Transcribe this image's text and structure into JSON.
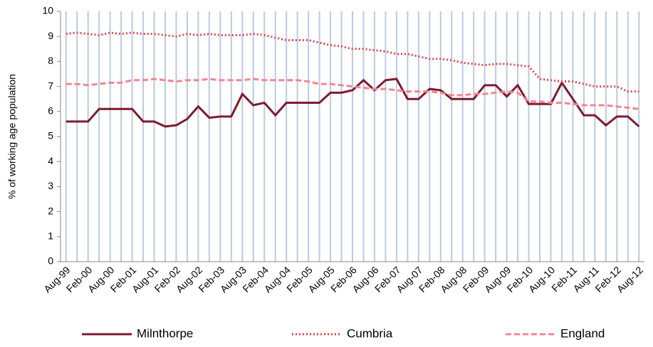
{
  "chart_data": {
    "type": "line",
    "ylabel": "% of working age population",
    "categories": [
      "Aug-99",
      null,
      "Feb-00",
      null,
      "Aug-00",
      null,
      "Feb-01",
      null,
      "Aug-01",
      null,
      "Feb-02",
      null,
      "Aug-02",
      null,
      "Feb-03",
      null,
      "Aug-03",
      null,
      "Feb-04",
      null,
      "Aug-04",
      null,
      "Feb-05",
      null,
      "Aug-05",
      null,
      "Feb-06",
      null,
      "Aug-06",
      null,
      "Feb-07",
      null,
      "Aug-07",
      null,
      "Feb-08",
      null,
      "Aug-08",
      null,
      "Feb-09",
      null,
      "Aug-09",
      null,
      "Feb-10",
      null,
      "Aug-10",
      null,
      "Feb-11",
      null,
      "Aug-11",
      null,
      "Feb-12",
      null,
      "Aug-12"
    ],
    "series": [
      {
        "name": "Milnthorpe",
        "color": "#7b1c2e",
        "style": "solid",
        "values": [
          5.6,
          5.6,
          5.6,
          6.1,
          6.1,
          6.1,
          6.1,
          5.6,
          5.6,
          5.4,
          5.45,
          5.7,
          6.2,
          5.75,
          5.8,
          5.8,
          6.7,
          6.25,
          6.35,
          5.85,
          6.35,
          6.35,
          6.35,
          6.35,
          6.75,
          6.75,
          6.85,
          7.25,
          6.85,
          7.25,
          7.3,
          6.5,
          6.5,
          6.9,
          6.85,
          6.5,
          6.5,
          6.5,
          7.05,
          7.05,
          6.6,
          7.05,
          6.3,
          6.3,
          6.3,
          7.15,
          6.5,
          5.85,
          5.85,
          5.45,
          5.8,
          5.8,
          5.4
        ]
      },
      {
        "name": "Cumbria",
        "color": "#e8474c",
        "style": "dotted",
        "values": [
          9.1,
          9.15,
          9.1,
          9.05,
          9.15,
          9.1,
          9.15,
          9.1,
          9.1,
          9.05,
          9.0,
          9.1,
          9.05,
          9.1,
          9.05,
          9.05,
          9.05,
          9.1,
          9.05,
          8.95,
          8.85,
          8.85,
          8.85,
          8.75,
          8.65,
          8.6,
          8.5,
          8.5,
          8.45,
          8.4,
          8.3,
          8.3,
          8.2,
          8.1,
          8.1,
          8.05,
          7.95,
          7.9,
          7.85,
          7.9,
          7.9,
          7.85,
          7.8,
          7.3,
          7.25,
          7.2,
          7.2,
          7.1,
          7.0,
          7.0,
          7.0,
          6.8,
          6.8
        ]
      },
      {
        "name": "England",
        "color": "#f4858e",
        "style": "dashed",
        "values": [
          7.1,
          7.1,
          7.05,
          7.1,
          7.15,
          7.15,
          7.25,
          7.25,
          7.3,
          7.25,
          7.2,
          7.25,
          7.25,
          7.3,
          7.25,
          7.25,
          7.25,
          7.3,
          7.25,
          7.25,
          7.25,
          7.25,
          7.2,
          7.1,
          7.1,
          7.05,
          7.0,
          6.95,
          6.9,
          6.9,
          6.85,
          6.8,
          6.8,
          6.8,
          6.75,
          6.65,
          6.65,
          6.7,
          6.7,
          6.75,
          6.8,
          6.75,
          6.4,
          6.4,
          6.35,
          6.35,
          6.3,
          6.25,
          6.25,
          6.25,
          6.2,
          6.15,
          6.1
        ]
      }
    ],
    "ylim": [
      0,
      10
    ],
    "yticks": [
      0,
      1,
      2,
      3,
      4,
      5,
      6,
      7,
      8,
      9,
      10
    ],
    "grid": "vertical",
    "grid_color": "#b8cce4",
    "legend": "bottom"
  }
}
